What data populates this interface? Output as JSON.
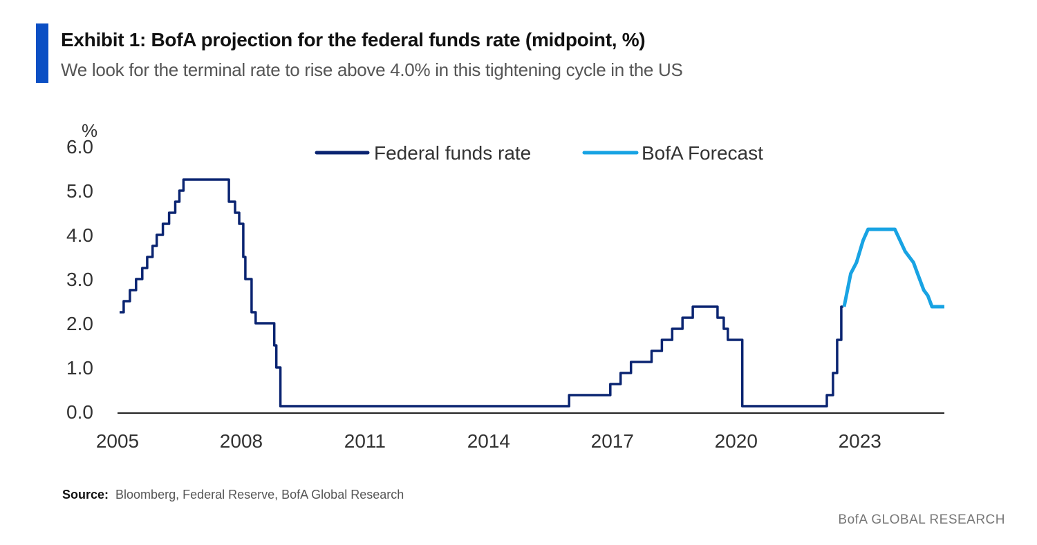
{
  "header": {
    "title": "Exhibit 1: BofA projection for the federal funds rate (midpoint, %)",
    "subtitle": "We look for the terminal rate to rise above 4.0% in this tightening cycle in the US"
  },
  "footer": {
    "source_label": "Source:",
    "source_text": "Bloomberg, Federal Reserve, BofA Global Research",
    "brand": "BofA GLOBAL RESEARCH"
  },
  "colors": {
    "accent": "#0b4fc4",
    "series_fed": "#0a2471",
    "series_forecast": "#18a3e3",
    "axis": "#222222",
    "text": "#333333"
  },
  "chart_data": {
    "type": "line",
    "ylabel": "%",
    "xlabel": "",
    "ylim": [
      0,
      6.0
    ],
    "yticks": [
      0,
      1,
      2,
      3,
      4,
      5,
      6
    ],
    "ytick_labels": [
      "0.0",
      "1.0",
      "2.0",
      "3.0",
      "4.0",
      "5.0",
      "6.0"
    ],
    "xlim": [
      2005.0,
      2025.05
    ],
    "xticks": [
      2005,
      2008,
      2011,
      2014,
      2017,
      2020,
      2023
    ],
    "xtick_labels": [
      "2005",
      "2008",
      "2011",
      "2014",
      "2017",
      "2020",
      "2023"
    ],
    "grid": false,
    "legend_position": "top-center",
    "series": [
      {
        "name": "Federal funds rate",
        "color": "#0a2471",
        "step": true,
        "points": [
          [
            2005.05,
            2.25
          ],
          [
            2005.15,
            2.5
          ],
          [
            2005.3,
            2.75
          ],
          [
            2005.45,
            3.0
          ],
          [
            2005.6,
            3.25
          ],
          [
            2005.72,
            3.5
          ],
          [
            2005.85,
            3.75
          ],
          [
            2005.95,
            4.0
          ],
          [
            2006.1,
            4.25
          ],
          [
            2006.25,
            4.5
          ],
          [
            2006.4,
            4.75
          ],
          [
            2006.5,
            5.0
          ],
          [
            2006.6,
            5.25
          ],
          [
            2007.7,
            4.75
          ],
          [
            2007.85,
            4.5
          ],
          [
            2007.95,
            4.25
          ],
          [
            2008.05,
            3.5
          ],
          [
            2008.1,
            3.0
          ],
          [
            2008.25,
            2.25
          ],
          [
            2008.35,
            2.0
          ],
          [
            2008.8,
            1.5
          ],
          [
            2008.85,
            1.0
          ],
          [
            2008.95,
            0.125
          ],
          [
            2015.95,
            0.375
          ],
          [
            2016.95,
            0.625
          ],
          [
            2017.2,
            0.875
          ],
          [
            2017.45,
            1.125
          ],
          [
            2017.95,
            1.375
          ],
          [
            2018.2,
            1.625
          ],
          [
            2018.45,
            1.875
          ],
          [
            2018.7,
            2.125
          ],
          [
            2018.95,
            2.375
          ],
          [
            2019.55,
            2.125
          ],
          [
            2019.7,
            1.875
          ],
          [
            2019.8,
            1.625
          ],
          [
            2020.15,
            0.125
          ],
          [
            2022.2,
            0.375
          ],
          [
            2022.35,
            0.875
          ],
          [
            2022.45,
            1.625
          ],
          [
            2022.55,
            2.375
          ],
          [
            2022.6,
            2.375
          ]
        ]
      },
      {
        "name": "BofA Forecast",
        "color": "#18a3e3",
        "step": false,
        "points": [
          [
            2022.62,
            2.375
          ],
          [
            2022.78,
            3.125
          ],
          [
            2022.92,
            3.375
          ],
          [
            2023.08,
            3.875
          ],
          [
            2023.2,
            4.125
          ],
          [
            2023.45,
            4.125
          ],
          [
            2023.85,
            4.125
          ],
          [
            2024.1,
            3.625
          ],
          [
            2024.3,
            3.375
          ],
          [
            2024.4,
            3.125
          ],
          [
            2024.55,
            2.75
          ],
          [
            2024.65,
            2.625
          ],
          [
            2024.75,
            2.375
          ],
          [
            2025.05,
            2.375
          ]
        ]
      }
    ]
  }
}
